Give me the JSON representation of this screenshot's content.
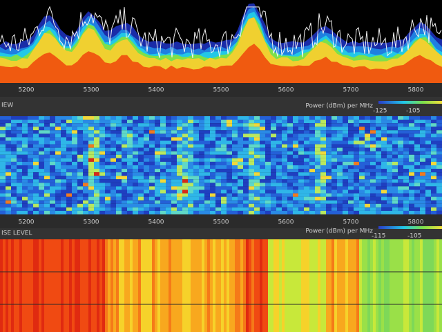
{
  "spectrum": {
    "axis_ticks": [
      "5200",
      "5300",
      "5400",
      "5500",
      "5600",
      "5700",
      "5800"
    ]
  },
  "density_view": {
    "header": "IEW",
    "power_label": "Power (dBm) per MHz",
    "scale_labels": [
      "-125",
      "-105"
    ],
    "axis_ticks": [
      "5200",
      "5300",
      "5400",
      "5500",
      "5600",
      "5700",
      "5800"
    ]
  },
  "noise_level": {
    "header": "ISE LEVEL",
    "power_label": "Power (dBm) per MHz",
    "scale_labels": [
      "-115",
      "-105"
    ]
  }
}
